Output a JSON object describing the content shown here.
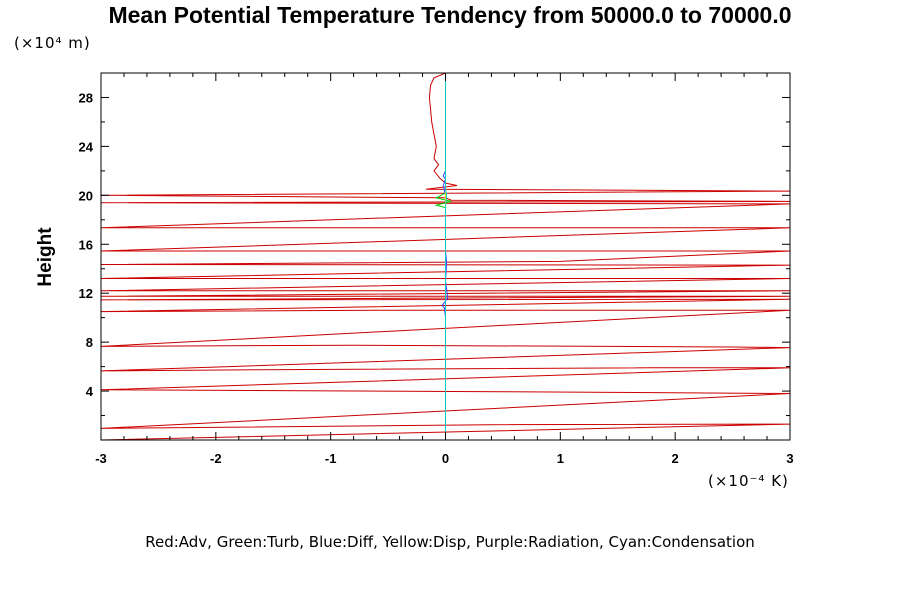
{
  "chart_data": {
    "type": "line",
    "title": "Mean Potential Temperature Tendency from 50000.0 to 70000.0",
    "ylabel": "Height",
    "x_unit_label": "(×10⁻⁴ K)",
    "y_unit_label": "(×10⁴ m)",
    "xlim": [
      -3,
      3
    ],
    "ylim": [
      0,
      30
    ],
    "x_ticks": [
      -3,
      -2,
      -1,
      0,
      1,
      2,
      3
    ],
    "y_ticks": [
      4,
      8,
      12,
      16,
      20,
      24,
      28
    ],
    "x_tick_labels": [
      "-3",
      "-2",
      "-1",
      "0",
      "1",
      "2",
      "3"
    ],
    "y_tick_labels": [
      "4",
      "8",
      "12",
      "16",
      "20",
      "24",
      "28"
    ],
    "legend_text": "Red:Adv, Green:Turb, Blue:Diff, Yellow:Disp, Purple:Radiation, Cyan:Condensation",
    "grid": false,
    "series": [
      {
        "name": "Adv",
        "color": "#cc0000",
        "points": [
          [
            0.0,
            30.0
          ],
          [
            -0.1,
            29.6
          ],
          [
            -0.13,
            29.0
          ],
          [
            -0.14,
            28.0
          ],
          [
            -0.13,
            27.0
          ],
          [
            -0.12,
            26.0
          ],
          [
            -0.1,
            25.0
          ],
          [
            -0.08,
            24.0
          ],
          [
            -0.1,
            23.0
          ],
          [
            -0.06,
            22.5
          ],
          [
            -0.1,
            22.0
          ],
          [
            -0.05,
            21.4
          ],
          [
            0.0,
            21.0
          ],
          [
            0.1,
            20.8
          ],
          [
            -0.17,
            20.5
          ],
          [
            3,
            20.35
          ],
          [
            -3,
            20.0
          ],
          [
            0.0,
            19.8
          ],
          [
            0.05,
            19.6
          ],
          [
            3,
            19.5
          ],
          [
            -3,
            19.4
          ],
          [
            3,
            19.3
          ],
          [
            -3,
            17.35
          ],
          [
            3,
            17.35
          ],
          [
            -3,
            15.45
          ],
          [
            3,
            15.45
          ],
          [
            1,
            14.6
          ],
          [
            -1.35,
            14.45
          ],
          [
            -3,
            14.35
          ],
          [
            3,
            14.3
          ],
          [
            -3,
            13.2
          ],
          [
            3,
            13.2
          ],
          [
            -3,
            12.2
          ],
          [
            3,
            12.2
          ],
          [
            -3,
            11.75
          ],
          [
            3,
            11.75
          ],
          [
            -3,
            11.45
          ],
          [
            3,
            11.5
          ],
          [
            -3,
            10.5
          ],
          [
            -0.6,
            10.6
          ],
          [
            3,
            10.6
          ],
          [
            -3,
            7.65
          ],
          [
            -0.8,
            7.75
          ],
          [
            2.5,
            7.6
          ],
          [
            3,
            7.55
          ],
          [
            -3,
            5.65
          ],
          [
            -1.6,
            5.75
          ],
          [
            1.8,
            5.9
          ],
          [
            3,
            5.9
          ],
          [
            -3,
            4.1
          ],
          [
            0.5,
            3.95
          ],
          [
            3,
            3.8
          ],
          [
            -3,
            0.95
          ],
          [
            0.4,
            1.25
          ],
          [
            3,
            1.3
          ],
          [
            -3,
            0.0
          ]
        ]
      },
      {
        "name": "Turb",
        "color": "#00cc00",
        "points": [
          [
            0.0,
            30.0
          ],
          [
            0.0,
            21.0
          ],
          [
            0.0,
            20.2
          ],
          [
            -0.08,
            19.8
          ],
          [
            0.05,
            19.5
          ],
          [
            -0.08,
            19.2
          ],
          [
            0.0,
            19.0
          ],
          [
            0.0,
            0.0
          ]
        ]
      },
      {
        "name": "Diff",
        "color": "#4040ff",
        "points": [
          [
            0.0,
            30.0
          ],
          [
            0.0,
            22.0
          ],
          [
            -0.02,
            21.6
          ],
          [
            0.0,
            21.3
          ],
          [
            -0.02,
            20.8
          ],
          [
            0.0,
            20.0
          ],
          [
            0.0,
            15.5
          ],
          [
            0.01,
            14.5
          ],
          [
            0.0,
            13.0
          ],
          [
            0.02,
            11.6
          ],
          [
            -0.03,
            11.0
          ],
          [
            -0.01,
            10.8
          ],
          [
            0.0,
            10.0
          ],
          [
            0.0,
            0.0
          ]
        ]
      },
      {
        "name": "Disp",
        "color": "#e6e600",
        "points": [
          [
            0.0,
            30.0
          ],
          [
            0.0,
            0.0
          ]
        ]
      },
      {
        "name": "Condensation",
        "color": "#00cccc",
        "points": [
          [
            0.0,
            30.0
          ],
          [
            0.0,
            20.5
          ],
          [
            0.01,
            20.0
          ],
          [
            0.0,
            19.0
          ],
          [
            0.0,
            10.0
          ],
          [
            0.0,
            0.0
          ]
        ]
      }
    ]
  }
}
